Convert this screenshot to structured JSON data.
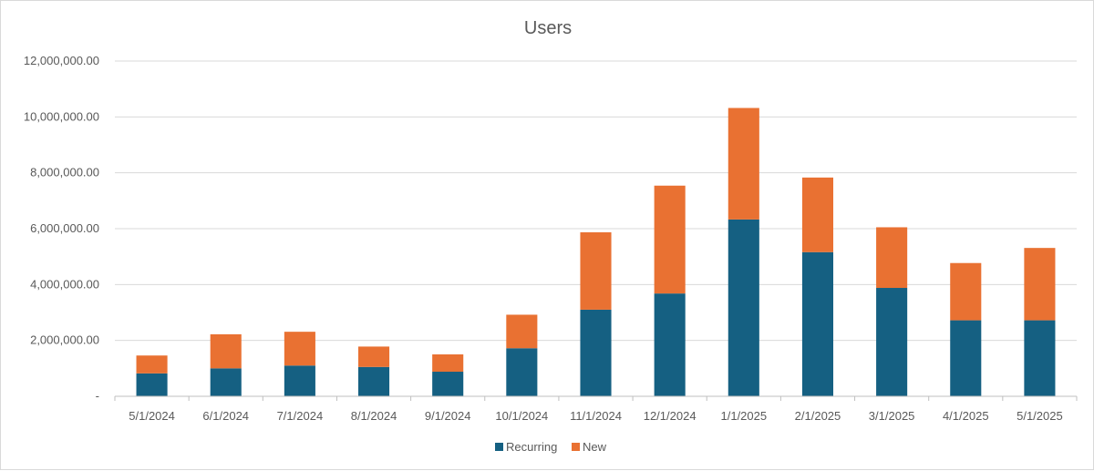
{
  "chart_data": {
    "type": "bar",
    "stacked": true,
    "title": "Users",
    "xlabel": "",
    "ylabel": "",
    "ylim": [
      0,
      12000000
    ],
    "yticks": [
      {
        "value": 0,
        "label": "-"
      },
      {
        "value": 2000000,
        "label": "2,000,000.00"
      },
      {
        "value": 4000000,
        "label": "4,000,000.00"
      },
      {
        "value": 6000000,
        "label": "6,000,000.00"
      },
      {
        "value": 8000000,
        "label": "8,000,000.00"
      },
      {
        "value": 10000000,
        "label": "10,000,000.00"
      },
      {
        "value": 12000000,
        "label": "12,000,000.00"
      }
    ],
    "grid": true,
    "legend_position": "bottom",
    "categories": [
      "5/1/2024",
      "6/1/2024",
      "7/1/2024",
      "8/1/2024",
      "9/1/2024",
      "10/1/2024",
      "11/1/2024",
      "12/1/2024",
      "1/1/2025",
      "2/1/2025",
      "3/1/2025",
      "4/1/2025",
      "5/1/2025"
    ],
    "series": [
      {
        "name": "Recurring",
        "color": "#156082",
        "values": [
          820000,
          1000000,
          1100000,
          1050000,
          880000,
          1720000,
          3100000,
          3680000,
          6330000,
          5160000,
          3880000,
          2720000,
          2720000
        ]
      },
      {
        "name": "New",
        "color": "#E97132",
        "values": [
          640000,
          1220000,
          1210000,
          730000,
          620000,
          1200000,
          2770000,
          3860000,
          3990000,
          2670000,
          2170000,
          2050000,
          2590000
        ]
      }
    ]
  }
}
